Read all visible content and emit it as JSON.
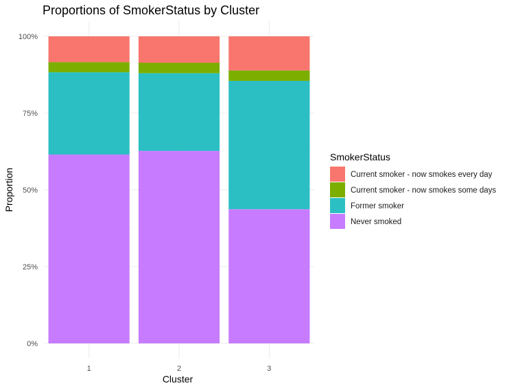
{
  "chart_data": {
    "type": "bar",
    "stacked": true,
    "normalized": true,
    "title": "Proportions of SmokerStatus by Cluster",
    "xlabel": "Cluster",
    "ylabel": "Proportion",
    "categories": [
      "1",
      "2",
      "3"
    ],
    "ylim": [
      0,
      1
    ],
    "yticks": [
      0,
      0.25,
      0.5,
      0.75,
      1.0
    ],
    "ytick_labels": [
      "0%",
      "25%",
      "50%",
      "75%",
      "100%"
    ],
    "grid": true,
    "legend": {
      "title": "SmokerStatus",
      "placement": "right"
    },
    "series": [
      {
        "name": "Never smoked",
        "color": "#C77CFF",
        "values": [
          0.615,
          0.627,
          0.437
        ]
      },
      {
        "name": "Former smoker",
        "color": "#2BBFC4",
        "values": [
          0.268,
          0.253,
          0.418
        ]
      },
      {
        "name": "Current smoker - now smokes some days",
        "color": "#7CAE00",
        "values": [
          0.033,
          0.034,
          0.034
        ]
      },
      {
        "name": "Current smoker - now smokes every day",
        "color": "#F8766D",
        "values": [
          0.084,
          0.086,
          0.111
        ]
      }
    ]
  }
}
